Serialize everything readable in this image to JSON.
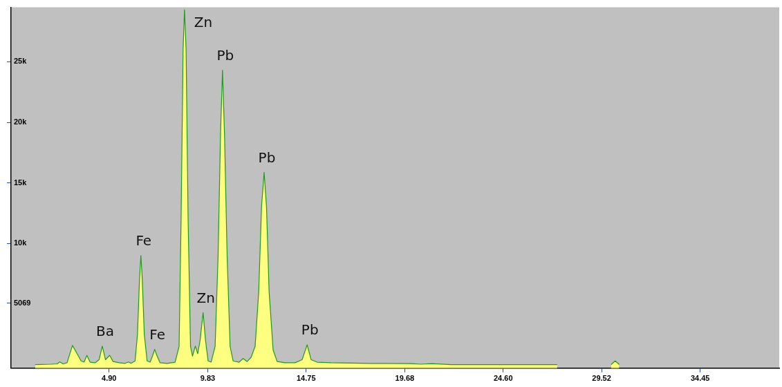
{
  "chart_data": {
    "type": "area",
    "x": [
      1.2,
      2.0,
      2.3,
      2.44,
      2.6,
      2.8,
      3.07,
      3.3,
      3.5,
      3.65,
      3.79,
      3.95,
      4.2,
      4.4,
      4.56,
      4.72,
      4.93,
      5.1,
      5.4,
      5.7,
      5.87,
      6.0,
      6.2,
      6.32,
      6.42,
      6.49,
      6.56,
      6.66,
      6.8,
      6.95,
      7.07,
      7.18,
      7.3,
      7.45,
      7.8,
      8.2,
      8.4,
      8.5,
      8.6,
      8.67,
      8.75,
      8.85,
      8.97,
      9.07,
      9.21,
      9.33,
      9.45,
      9.6,
      9.72,
      9.85,
      10.0,
      10.2,
      10.35,
      10.47,
      10.57,
      10.67,
      10.8,
      10.95,
      11.1,
      11.4,
      11.6,
      11.8,
      12.0,
      12.2,
      12.38,
      12.52,
      12.65,
      12.77,
      12.9,
      13.1,
      13.3,
      13.7,
      14.2,
      14.55,
      14.8,
      15.0,
      15.3,
      16.0,
      17.0,
      18.0,
      19.0,
      20.0,
      20.5,
      21.0,
      22.0,
      24.0,
      26.0,
      27.3,
      28.5,
      30.0,
      30.2,
      30.4
    ],
    "series": [
      {
        "color": "#ffff80",
        "values": [
          0,
          30,
          60,
          220,
          60,
          150,
          1580,
          900,
          300,
          200,
          760,
          200,
          150,
          400,
          1520,
          400,
          760,
          250,
          150,
          100,
          220,
          100,
          300,
          2500,
          7000,
          9000,
          7000,
          2500,
          300,
          200,
          700,
          1250,
          700,
          150,
          100,
          200,
          1500,
          12000,
          26000,
          29300,
          26000,
          12000,
          1500,
          700,
          1520,
          900,
          2000,
          4290,
          2000,
          300,
          200,
          1500,
          9000,
          19000,
          24300,
          19000,
          9000,
          1500,
          300,
          200,
          500,
          250,
          600,
          1500,
          6000,
          13000,
          15870,
          13000,
          6000,
          1200,
          250,
          150,
          150,
          400,
          1630,
          400,
          200,
          150,
          120,
          100,
          100,
          80,
          30,
          80,
          0,
          0,
          0,
          0,
          null,
          0,
          300,
          0
        ]
      }
    ],
    "xlim": [
      0,
      38.4
    ],
    "xticks": [
      {
        "value": 4.9,
        "label": "4.90"
      },
      9.83,
      14.75,
      19.68,
      {
        "value": 24.6,
        "label": "24.60"
      },
      29.52,
      34.45
    ],
    "ylim": [
      -300,
      29500
    ],
    "yticks": [
      {
        "value": 5069,
        "label": "5069"
      },
      {
        "value": 10000,
        "label": "10k"
      },
      {
        "value": 15000,
        "label": "15k"
      },
      {
        "value": 20000,
        "label": "20k"
      },
      {
        "value": 25000,
        "label": "25k"
      }
    ],
    "annotations": [
      {
        "text": "Ba",
        "x": 4.56,
        "y": 1520
      },
      {
        "text": "Fe",
        "x": 6.49,
        "y": 9000
      },
      {
        "text": "Fe",
        "x": 7.18,
        "y": 1250
      },
      {
        "text": "Zn",
        "x": 8.67,
        "y": 29300
      },
      {
        "text": "Zn",
        "x": 9.6,
        "y": 4290
      },
      {
        "text": "Pb",
        "x": 10.57,
        "y": 24300
      },
      {
        "text": "Pb",
        "x": 12.65,
        "y": 15870
      },
      {
        "text": "Pb",
        "x": 14.8,
        "y": 1630
      }
    ]
  }
}
